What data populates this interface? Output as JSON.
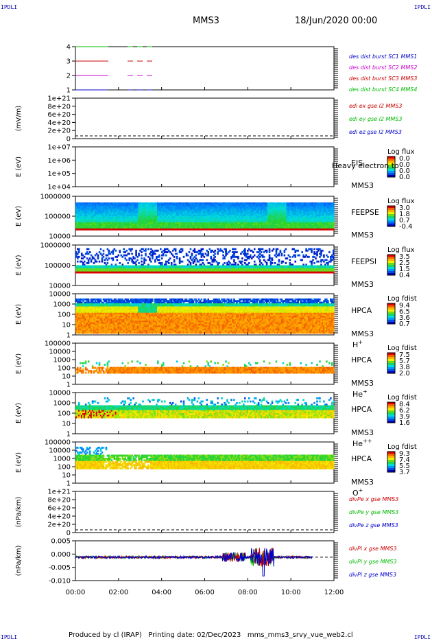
{
  "corners": {
    "tl": "IPDLI",
    "tr": "IPDLI",
    "bl": "IPDLI",
    "br": "IPDLI"
  },
  "header": {
    "title": "MMS3",
    "date": "18/Jun/2020 00:00"
  },
  "footer": {
    "producer": "Produced by cl (IRAP)",
    "printing": "Printing date: 02/Dec/2023",
    "file": "mms_mms3_srvy_vue_web2.cl"
  },
  "colors": {
    "mms1": "#0000cc",
    "mms2": "#cc00cc",
    "mms3": "#cc0000",
    "mms4": "#00bb00",
    "x": "#cc0000",
    "y": "#00bb00",
    "z": "#0000cc"
  },
  "chart_data": [
    {
      "type": "line",
      "name": "position",
      "ylim": [
        1,
        4
      ],
      "yticks": [
        "4",
        "3",
        "2",
        "1"
      ],
      "series": [
        {
          "name": "des dist burst SC1 MMS1",
          "color": "#0000cc",
          "value": 1
        },
        {
          "name": "des dist burst SC2 MMS2",
          "color": "#cc00cc",
          "value": 2
        },
        {
          "name": "des dist burst SC3 MMS3",
          "color": "#cc0000",
          "value": 3
        },
        {
          "name": "des dist burst SC4 MMS4",
          "color": "#00bb00",
          "value": 4
        }
      ]
    },
    {
      "type": "line",
      "name": "edi",
      "ylabel": "(mV/m)",
      "yticks": [
        "1e+21",
        "8e+20",
        "6e+20",
        "4e+20",
        "2e+20",
        "0"
      ],
      "series": [
        {
          "name": "edi ex gse l2 MMS3",
          "color": "#cc0000"
        },
        {
          "name": "edi ey gse l2 MMS3",
          "color": "#00bb00"
        },
        {
          "name": "edi ez gse l2 MMS3",
          "color": "#0000cc"
        }
      ]
    },
    {
      "type": "heatmap",
      "name": "eis",
      "ylabel": "E (eV)",
      "yticks": [
        "1e+07",
        "1e+06",
        "1e+05",
        "1e+04"
      ],
      "instrument": "EIS",
      "overlay": "Heavy electron to",
      "spacecraft": "MMS3",
      "colorbar_title": "Log flux",
      "colorbar": [
        "0.0",
        "0.0",
        "0.0",
        "0.0"
      ]
    },
    {
      "type": "heatmap",
      "name": "feepse",
      "ylabel": "E (eV)",
      "yticks": [
        "1000000",
        "100000",
        "10000"
      ],
      "instrument": "FEEPSE",
      "spacecraft": "MMS3",
      "colorbar_title": "Log flux",
      "colorbar": [
        "3.0",
        "1.8",
        "0.7",
        "-0.4"
      ]
    },
    {
      "type": "heatmap",
      "name": "feepsi",
      "ylabel": "E (eV)",
      "yticks": [
        "1000000",
        "100000",
        "10000"
      ],
      "instrument": "FEEPSI",
      "spacecraft": "MMS3",
      "colorbar_title": "Log flux",
      "colorbar": [
        "3.5",
        "2.5",
        "1.5",
        "0.4"
      ]
    },
    {
      "type": "heatmap",
      "name": "hpca-h",
      "ylabel": "E (eV)",
      "yticks": [
        "10000",
        "1000",
        "100",
        "10",
        "1"
      ],
      "instrument": "HPCA",
      "spacecraft": "MMS3",
      "species": "H",
      "charge": "+",
      "colorbar_title": "Log fdist",
      "colorbar": [
        "9.4",
        "6.5",
        "3.6",
        "0.7"
      ]
    },
    {
      "type": "heatmap",
      "name": "hpca-he",
      "ylabel": "E (eV)",
      "yticks": [
        "100000",
        "10000",
        "1000",
        "100",
        "10",
        "1"
      ],
      "instrument": "HPCA",
      "spacecraft": "MMS3",
      "species": "He",
      "charge": "+",
      "colorbar_title": "Log fdist",
      "colorbar": [
        "7.5",
        "5.7",
        "3.8",
        "2.0"
      ]
    },
    {
      "type": "heatmap",
      "name": "hpca-he2",
      "ylabel": "E (eV)",
      "yticks": [
        "10000",
        "1000",
        "100",
        "10",
        "1"
      ],
      "instrument": "HPCA",
      "spacecraft": "MMS3",
      "species": "He",
      "charge": "++",
      "colorbar_title": "Log fdist",
      "colorbar": [
        "8.4",
        "6.2",
        "3.9",
        "1.6"
      ]
    },
    {
      "type": "heatmap",
      "name": "hpca-o",
      "ylabel": "E (eV)",
      "yticks": [
        "100000",
        "10000",
        "1000",
        "100",
        "10",
        "1"
      ],
      "instrument": "HPCA",
      "spacecraft": "MMS3",
      "species": "O",
      "charge": "+",
      "colorbar_title": "Log fdist",
      "colorbar": [
        "9.3",
        "7.4",
        "5.5",
        "3.7"
      ]
    },
    {
      "type": "line",
      "name": "divpe",
      "ylabel": "(nPa/km)",
      "yticks": [
        "1e+21",
        "8e+20",
        "6e+20",
        "4e+20",
        "2e+20",
        "0"
      ],
      "series": [
        {
          "name": "divPe x gse MMS3",
          "color": "#cc0000"
        },
        {
          "name": "divPe y gse MMS3",
          "color": "#00bb00"
        },
        {
          "name": "divPe z gse MMS3",
          "color": "#0000cc"
        }
      ]
    },
    {
      "type": "line",
      "name": "divpi",
      "ylabel": "(nPa/km)",
      "yticks": [
        "0.005",
        "0.000",
        "-0.005",
        "-0.010"
      ],
      "ylim": [
        -0.01,
        0.007
      ],
      "series": [
        {
          "name": "divPi x gse MMS3",
          "color": "#cc0000"
        },
        {
          "name": "divPi y gse MMS3",
          "color": "#00bb00"
        },
        {
          "name": "divPi z gse MMS3",
          "color": "#0000cc"
        }
      ]
    }
  ],
  "xaxis": {
    "ticks": [
      "00:00",
      "02:00",
      "04:00",
      "06:00",
      "08:00",
      "10:00",
      "12:00"
    ],
    "xlim": [
      "00:00",
      "12:00"
    ]
  }
}
